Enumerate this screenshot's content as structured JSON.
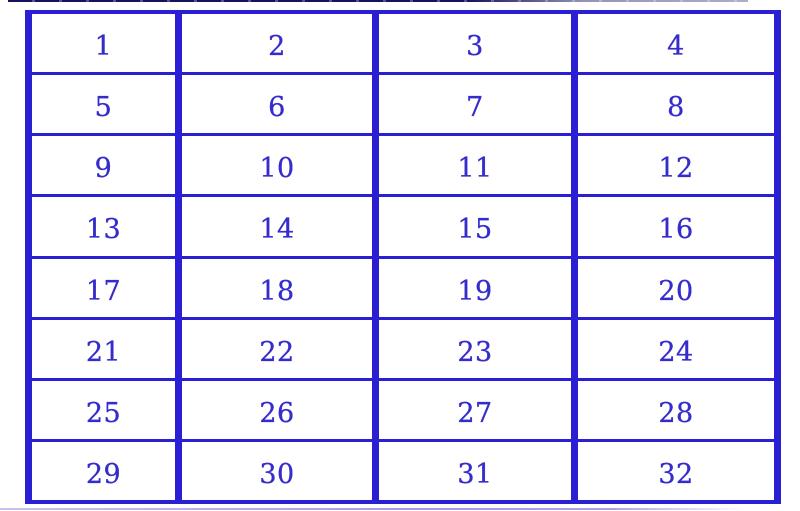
{
  "table": {
    "rows": [
      [
        "1",
        "2",
        "3",
        "4"
      ],
      [
        "5",
        "6",
        "7",
        "8"
      ],
      [
        "9",
        "10",
        "11",
        "12"
      ],
      [
        "13",
        "14",
        "15",
        "16"
      ],
      [
        "17",
        "18",
        "19",
        "20"
      ],
      [
        "21",
        "22",
        "23",
        "24"
      ],
      [
        "25",
        "26",
        "27",
        "28"
      ],
      [
        "29",
        "30",
        "31",
        "32"
      ]
    ]
  },
  "colors": {
    "grid_border": "#2b1fd3",
    "cell_text": "#352ccb",
    "background": "#ffffff"
  }
}
